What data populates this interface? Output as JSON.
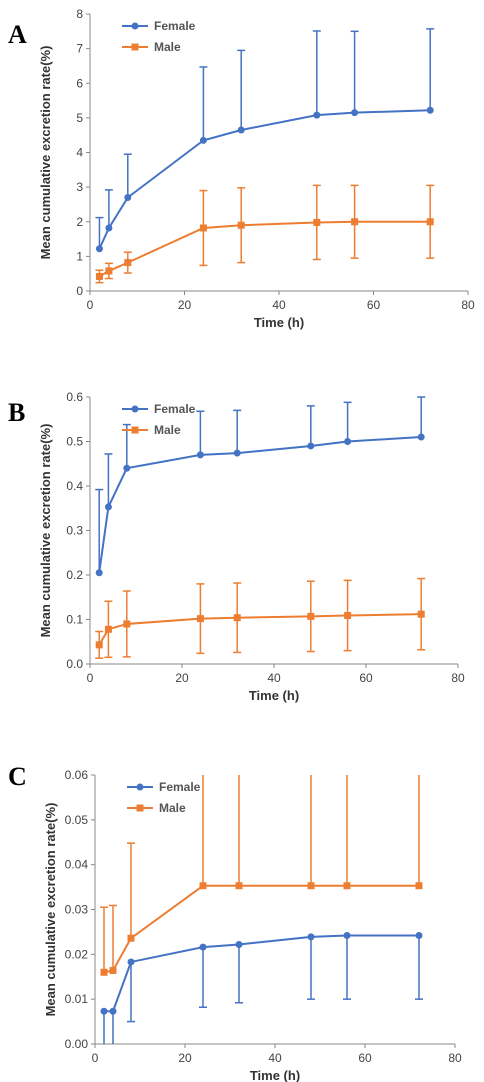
{
  "chart_data": [
    {
      "panel_label": "A",
      "type": "line",
      "xlabel": "Time (h)",
      "ylabel": "Mean cumulative excretion rate(%)",
      "xlim": [
        0,
        80
      ],
      "ylim": [
        0,
        8
      ],
      "xticks": [
        "0",
        "20",
        "40",
        "60",
        "80"
      ],
      "yticks": [
        "0",
        "1",
        "2",
        "3",
        "4",
        "5",
        "6",
        "7",
        "8"
      ],
      "legend_position": "top-left",
      "x": [
        2,
        4,
        8,
        24,
        32,
        48,
        56,
        72
      ],
      "series": [
        {
          "name": "Female",
          "color": "#4472C4",
          "marker": "circle",
          "error_dir": "up",
          "values": [
            1.22,
            1.82,
            2.7,
            4.35,
            4.65,
            5.08,
            5.15,
            5.22
          ],
          "error": [
            0.9,
            1.1,
            1.25,
            2.12,
            2.3,
            2.43,
            2.35,
            2.35
          ]
        },
        {
          "name": "Male",
          "color": "#ED7D31",
          "marker": "square",
          "error_dir": "both",
          "values": [
            0.42,
            0.58,
            0.82,
            1.82,
            1.9,
            1.98,
            2.0,
            2.0
          ],
          "error": [
            0.18,
            0.22,
            0.3,
            1.08,
            1.08,
            1.07,
            1.05,
            1.05
          ]
        }
      ]
    },
    {
      "panel_label": "B",
      "type": "line",
      "xlabel": "Time (h)",
      "ylabel": "Mean cumulative excretion rate(%)",
      "xlim": [
        0,
        80
      ],
      "ylim": [
        0,
        0.6
      ],
      "xticks": [
        "0",
        "20",
        "40",
        "60",
        "80"
      ],
      "yticks": [
        "0.0",
        "0.1",
        "0.2",
        "0.3",
        "0.4",
        "0.5",
        "0.6"
      ],
      "legend_position": "top-left",
      "x": [
        2,
        4,
        8,
        24,
        32,
        48,
        56,
        72
      ],
      "series": [
        {
          "name": "Female",
          "color": "#4472C4",
          "marker": "circle",
          "error_dir": "up",
          "values": [
            0.205,
            0.353,
            0.44,
            0.47,
            0.474,
            0.49,
            0.5,
            0.51
          ],
          "error": [
            0.187,
            0.119,
            0.098,
            0.098,
            0.096,
            0.09,
            0.088,
            0.09
          ]
        },
        {
          "name": "Male",
          "color": "#ED7D31",
          "marker": "square",
          "error_dir": "both",
          "values": [
            0.043,
            0.078,
            0.09,
            0.102,
            0.104,
            0.107,
            0.109,
            0.112
          ],
          "error": [
            0.03,
            0.063,
            0.074,
            0.078,
            0.078,
            0.079,
            0.079,
            0.08
          ]
        }
      ]
    },
    {
      "panel_label": "C",
      "type": "line",
      "xlabel": "Time (h)",
      "ylabel": "Mean cumulative excretion rate(%)",
      "xlim": [
        0,
        80
      ],
      "ylim": [
        0,
        0.06
      ],
      "xticks": [
        "0",
        "20",
        "40",
        "60",
        "80"
      ],
      "yticks": [
        "0.00",
        "0.01",
        "0.02",
        "0.03",
        "0.04",
        "0.05",
        "0.06"
      ],
      "legend_position": "top-left",
      "x": [
        2,
        4,
        8,
        24,
        32,
        48,
        56,
        72
      ],
      "series": [
        {
          "name": "Female",
          "color": "#4472C4",
          "marker": "circle",
          "error_dir": "down",
          "values": [
            0.0073,
            0.0073,
            0.0183,
            0.0216,
            0.0222,
            0.0239,
            0.0242,
            0.0242
          ],
          "error": [
            0.012,
            0.012,
            0.0133,
            0.0134,
            0.013,
            0.0139,
            0.0142,
            0.0142
          ]
        },
        {
          "name": "Male",
          "color": "#ED7D31",
          "marker": "square",
          "error_dir": "up",
          "values": [
            0.016,
            0.0164,
            0.0236,
            0.0353,
            0.0353,
            0.0353,
            0.0353,
            0.0353
          ],
          "error": [
            0.0145,
            0.0145,
            0.0212,
            0.035,
            0.035,
            0.035,
            0.035,
            0.035
          ]
        }
      ]
    }
  ]
}
